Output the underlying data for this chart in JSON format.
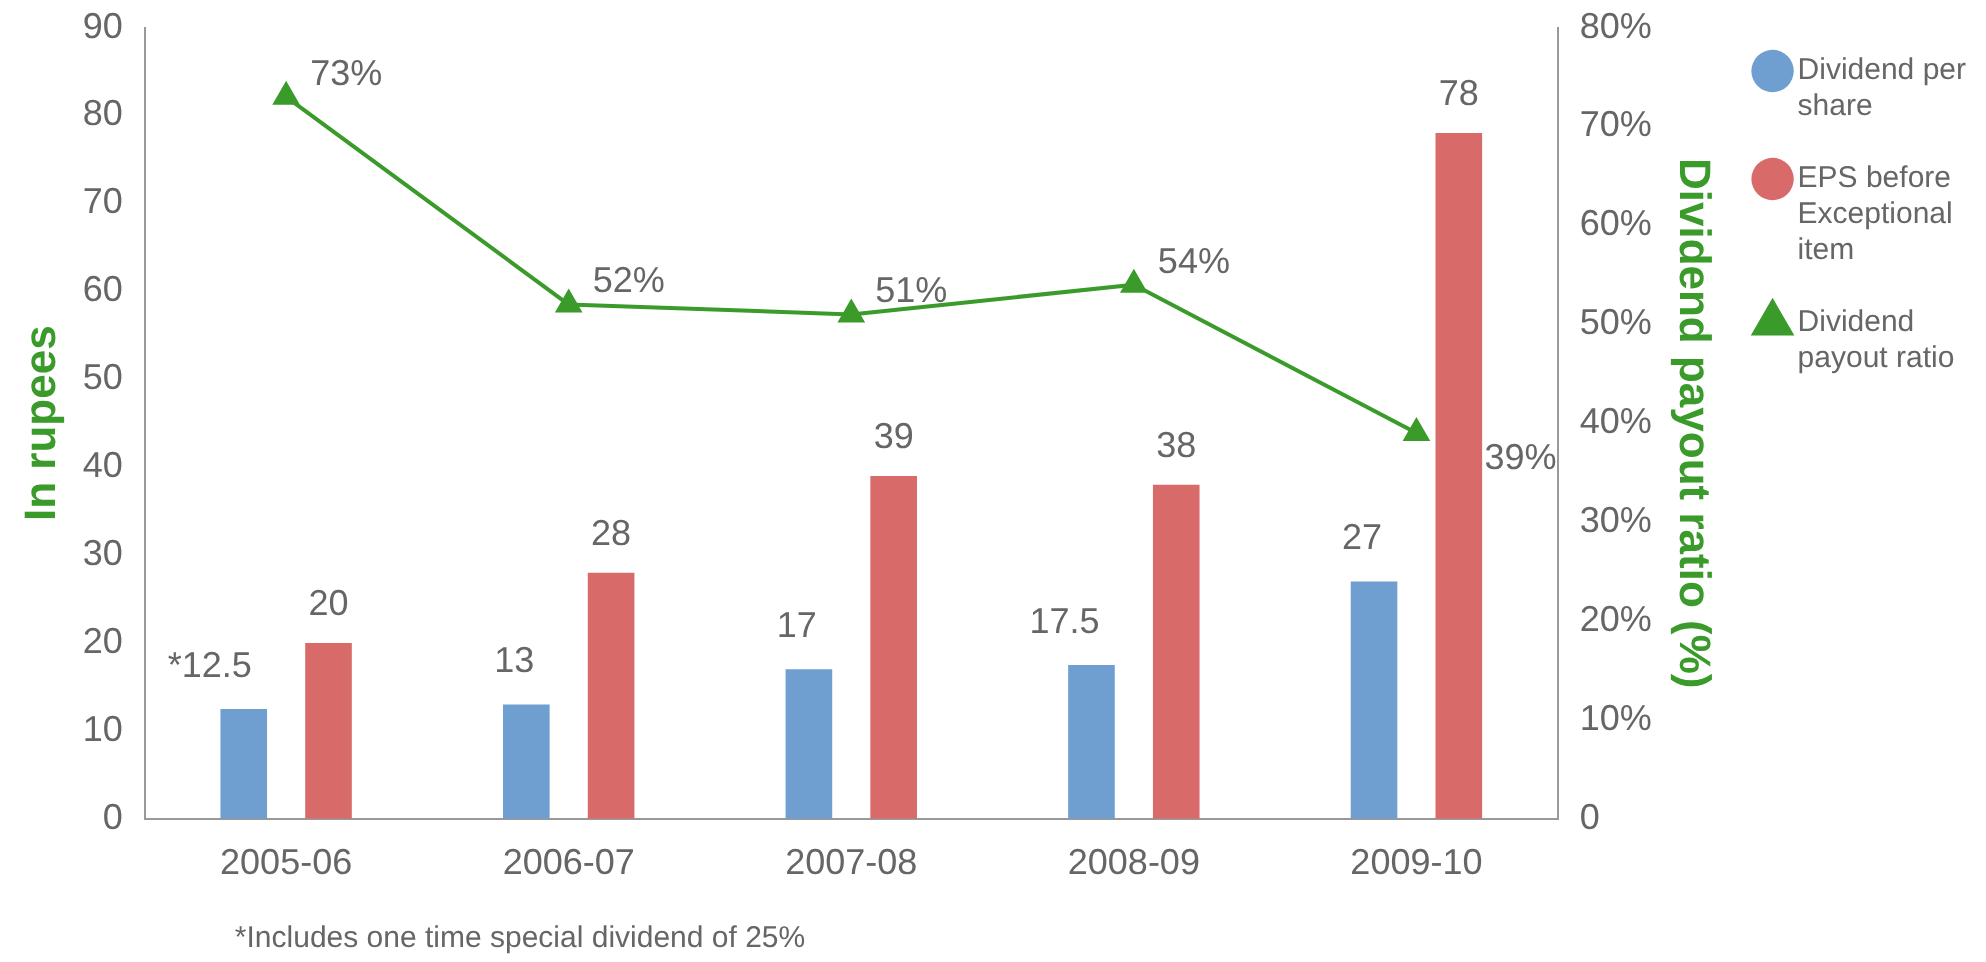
{
  "chart_data": {
    "type": "bar",
    "categories": [
      "2005-06",
      "2006-07",
      "2007-08",
      "2008-09",
      "2009-10"
    ],
    "ylabel": "In rupees",
    "y2label": "Dividend payout ratio (%)",
    "ylim": [
      0,
      90
    ],
    "yticks": [
      0,
      10,
      20,
      30,
      40,
      50,
      60,
      70,
      80,
      90
    ],
    "y2lim": [
      0,
      80
    ],
    "y2ticks": [
      {
        "value": 0,
        "label": "0"
      },
      {
        "value": 10,
        "label": "10%"
      },
      {
        "value": 20,
        "label": "20%"
      },
      {
        "value": 30,
        "label": "30%"
      },
      {
        "value": 40,
        "label": "40%"
      },
      {
        "value": 50,
        "label": "50%"
      },
      {
        "value": 60,
        "label": "60%"
      },
      {
        "value": 70,
        "label": "70%"
      },
      {
        "value": 80,
        "label": "80%"
      }
    ],
    "grid": false,
    "legend": "right",
    "marker": "triangle",
    "line_style": "solid",
    "annotations": [
      "*Includes one time special dividend of 25%"
    ],
    "series": [
      {
        "name": "Dividend per share",
        "color": "#6f9fd0",
        "values": [
          12.5,
          13,
          17,
          17.5,
          27
        ],
        "value_labels": [
          "*12.5",
          "13",
          "17",
          "17.5",
          "27"
        ]
      },
      {
        "name": "EPS before Exceptional item",
        "color": "#d96a6a",
        "values": [
          20,
          28,
          39,
          38,
          78
        ],
        "value_labels": [
          "20",
          "28",
          "39",
          "38",
          "78"
        ]
      },
      {
        "name": "Dividend payout ratio",
        "type": "line",
        "axis": "y2",
        "color": "#3a9a2a",
        "values": [
          73,
          52,
          51,
          54,
          39
        ],
        "value_labels": [
          "73%",
          "52%",
          "51%",
          "54%",
          "39%"
        ]
      }
    ]
  }
}
